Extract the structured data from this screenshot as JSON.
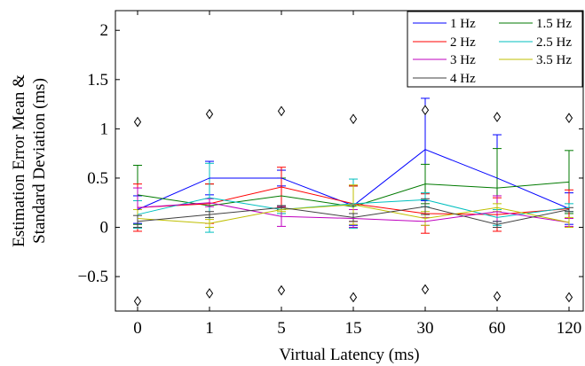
{
  "chart_data": {
    "type": "line",
    "categories": [
      "0",
      "1",
      "5",
      "15",
      "30",
      "60",
      "120"
    ],
    "xlabel": "Virtual Latency (ms)",
    "ylabel": [
      "Estimation Error Mean &",
      "Standard Deviation (ms)"
    ],
    "ylim": [
      -0.85,
      2.2
    ],
    "yticks": [
      -0.5,
      0,
      0.5,
      1,
      1.5,
      2
    ],
    "ytick_labels": [
      "−0.5",
      "0",
      "0.5",
      "1",
      "1.5",
      "2"
    ],
    "grid": false,
    "legend_position": "top-right",
    "series": [
      {
        "name": "1 Hz",
        "color": "#0000ff",
        "values": [
          0.18,
          0.5,
          0.5,
          0.22,
          0.79,
          0.5,
          0.19
        ],
        "err": [
          0.14,
          0.17,
          0.08,
          0.2,
          0.52,
          0.44,
          0.16
        ]
      },
      {
        "name": "1.5 Hz",
        "color": "#007a00",
        "values": [
          0.33,
          0.22,
          0.32,
          0.21,
          0.44,
          0.4,
          0.46
        ],
        "err": [
          0.3,
          0.22,
          0.18,
          0.21,
          0.2,
          0.4,
          0.32
        ]
      },
      {
        "name": "2 Hz",
        "color": "#ff0000",
        "values": [
          0.2,
          0.24,
          0.41,
          0.24,
          0.14,
          0.13,
          0.19
        ],
        "err": [
          0.24,
          0.2,
          0.2,
          0.18,
          0.2,
          0.17,
          0.19
        ]
      },
      {
        "name": "2.5 Hz",
        "color": "#00bfbf",
        "values": [
          0.13,
          0.3,
          0.18,
          0.24,
          0.28,
          0.1,
          0.2
        ],
        "err": [
          0.14,
          0.35,
          0.04,
          0.25,
          0.07,
          0.08,
          0.04
        ]
      },
      {
        "name": "3 Hz",
        "color": "#bf00bf",
        "values": [
          0.2,
          0.25,
          0.11,
          0.09,
          0.06,
          0.16,
          0.05
        ],
        "err": [
          0.2,
          0.04,
          0.1,
          0.09,
          0.04,
          0.16,
          0.04
        ]
      },
      {
        "name": "3.5 Hz",
        "color": "#bfbf00",
        "values": [
          0.09,
          0.04,
          0.18,
          0.23,
          0.09,
          0.2,
          0.05
        ],
        "err": [
          0.09,
          0.04,
          0.02,
          0.2,
          0.07,
          0.04,
          0.05
        ]
      },
      {
        "name": "4 Hz",
        "color": "#404040",
        "values": [
          0.06,
          0.13,
          0.2,
          0.1,
          0.21,
          0.03,
          0.18
        ],
        "err": [
          0.06,
          0.03,
          0.02,
          0.04,
          0.08,
          0.03,
          0.02
        ]
      }
    ],
    "markers": {
      "symbol": "diamond",
      "upper": [
        1.07,
        1.15,
        1.18,
        1.1,
        1.19,
        1.12,
        1.11
      ],
      "lower": [
        -0.75,
        -0.67,
        -0.64,
        -0.71,
        -0.63,
        -0.7,
        -0.71
      ]
    }
  }
}
